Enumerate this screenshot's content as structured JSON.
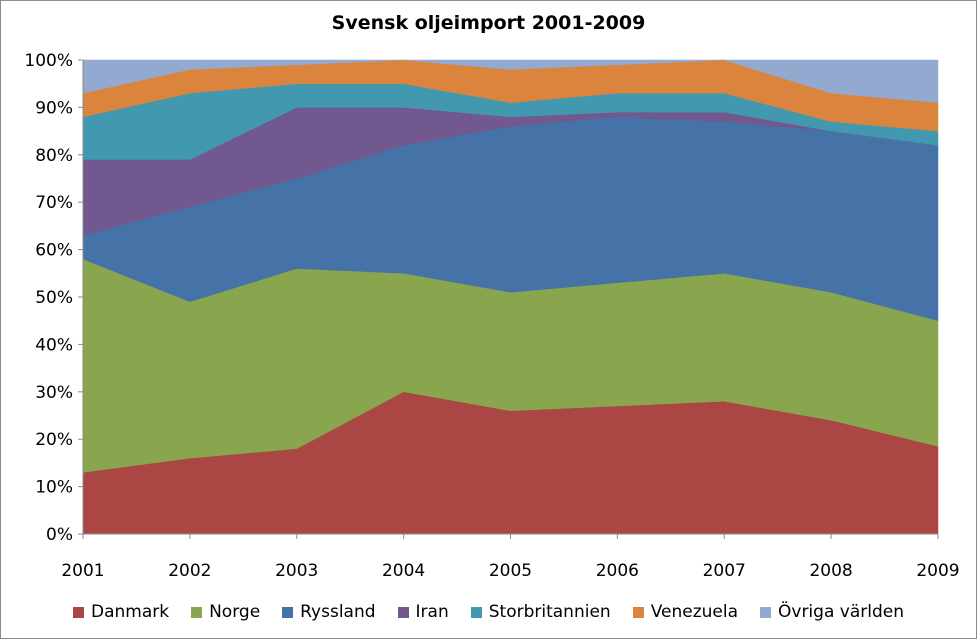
{
  "chart_data": {
    "type": "area",
    "stacked": true,
    "title": "Svensk oljeimport 2001-2009",
    "xlabel": "",
    "ylabel": "",
    "categories": [
      "2001",
      "2002",
      "2003",
      "2004",
      "2005",
      "2006",
      "2007",
      "2008",
      "2009"
    ],
    "y_ticks": [
      "0%",
      "10%",
      "20%",
      "30%",
      "40%",
      "50%",
      "60%",
      "70%",
      "80%",
      "90%",
      "100%"
    ],
    "ylim": [
      0,
      100
    ],
    "grid": false,
    "legend_position": "bottom",
    "series": [
      {
        "name": "Danmark",
        "color": "#aa4643",
        "values": [
          13,
          16,
          18,
          30,
          26,
          27,
          28,
          24,
          18.5
        ]
      },
      {
        "name": "Norge",
        "color": "#89a54e",
        "values": [
          45,
          33,
          38,
          25,
          25,
          26,
          27,
          27,
          26.5
        ]
      },
      {
        "name": "Ryssland",
        "color": "#4572a7",
        "values": [
          5,
          20,
          19,
          27,
          35,
          35,
          32,
          34,
          37
        ]
      },
      {
        "name": "Iran",
        "color": "#71588f",
        "values": [
          16,
          10,
          15,
          8,
          2,
          1,
          2,
          0,
          0
        ]
      },
      {
        "name": "Storbritannien",
        "color": "#4198af",
        "values": [
          9,
          14,
          5,
          5,
          3,
          4,
          4,
          2,
          3
        ]
      },
      {
        "name": "Venezuela",
        "color": "#db843d",
        "values": [
          5,
          5,
          4,
          5,
          7,
          6,
          7,
          6,
          6
        ]
      },
      {
        "name": "Övriga världen",
        "color": "#93a9cf",
        "values": [
          7,
          2,
          1,
          0,
          2,
          1,
          0,
          7,
          9
        ]
      }
    ]
  }
}
